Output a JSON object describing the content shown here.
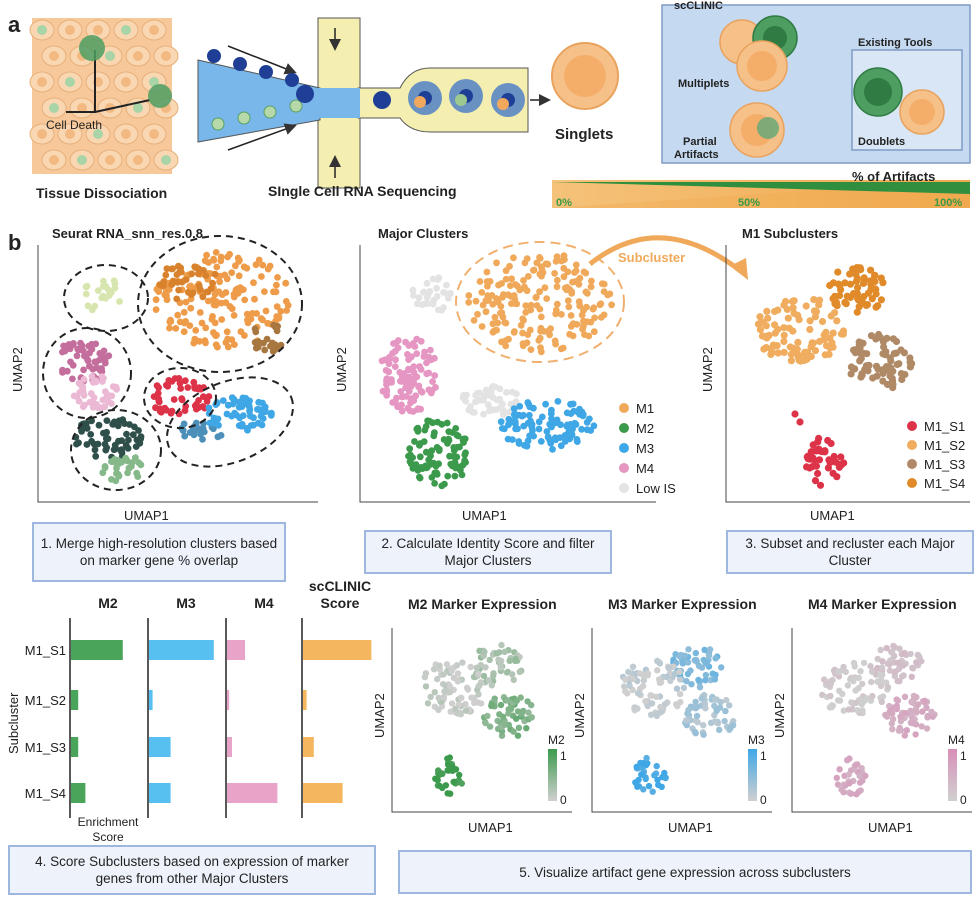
{
  "panel_a": {
    "label": "a",
    "tissue_title": "Tissue Dissociation",
    "cell_death": "Cell Death",
    "sequencing_title": "SIngle Cell RNA Sequencing",
    "singlets": "Singlets",
    "scclinic_label": "scCLINIC",
    "multiplets": "Multiplets",
    "partial_artifacts_1": "Partial",
    "partial_artifacts_2": "Artifacts",
    "existing_tools": "Existing Tools",
    "doublets": "Doublets",
    "artifacts_bar_title": "% of Artifacts",
    "artifacts_ticks": [
      "0%",
      "50%",
      "100%"
    ]
  },
  "panel_b": {
    "label": "b",
    "seurat_title": "Seurat RNA_snn_res.0.8",
    "major_title": "Major Clusters",
    "subcluster_arrow": "Subcluster",
    "m1sub_title": "M1 Subclusters",
    "umap1": "UMAP1",
    "umap2": "UMAP2",
    "major_legend": [
      "M1",
      "M2",
      "M3",
      "M4",
      "Low IS"
    ],
    "sub_legend": [
      "M1_S1",
      "M1_S2",
      "M1_S3",
      "M1_S4"
    ],
    "colors": {
      "M1": "#f0a95a",
      "M2": "#3c9a4c",
      "M3": "#3fa7e6",
      "M4": "#e596c2",
      "LowIS": "#e3e3e3",
      "S1": "#dd3348",
      "S2": "#f0ad5f",
      "S3": "#b08a67",
      "S4": "#e08a2a"
    }
  },
  "captions": {
    "c1": "1.  Merge high-resolution clusters based on marker gene % overlap",
    "c2": "2. Calculate Identity Score and filter Major Clusters",
    "c3": "3. Subset and recluster each Major Cluster",
    "c4": "4. Score Subclusters based on expression of marker genes from other Major Clusters",
    "c5": "5. Visualize artifact gene expression across subclusters"
  },
  "chart_data": [
    {
      "type": "bar",
      "orientation": "horizontal",
      "ylabel": "Subcluster",
      "xlabel": "Enrichment Score",
      "categories": [
        "M1_S1",
        "M1_S2",
        "M1_S3",
        "M1_S4"
      ],
      "series": [
        {
          "name": "M2",
          "color": "#4aa55a",
          "values": [
            0.72,
            0.1,
            0.1,
            0.2
          ]
        },
        {
          "name": "M3",
          "color": "#58c0f0",
          "values": [
            0.9,
            0.05,
            0.3,
            0.3
          ]
        },
        {
          "name": "M4",
          "color": "#e7a4c8",
          "values": [
            0.25,
            0.03,
            0.07,
            0.7
          ]
        },
        {
          "name": "scCLINIC Score",
          "color": "#f5b660",
          "values": [
            0.95,
            0.05,
            0.15,
            0.55
          ]
        }
      ],
      "series_title_lines": [
        [
          "M2"
        ],
        [
          "M3"
        ],
        [
          "M4"
        ],
        [
          "scCLINIC",
          "Score"
        ]
      ]
    }
  ],
  "expression_panels": [
    {
      "title": "M2 Marker Expression",
      "legend_title": "M2",
      "max_label": "1",
      "min_label": "0",
      "color": "#3c9a4c"
    },
    {
      "title": "M3 Marker Expression",
      "legend_title": "M3",
      "max_label": "1",
      "min_label": "0",
      "color": "#3fa7e6"
    },
    {
      "title": "M4 Marker Expression",
      "legend_title": "M4",
      "max_label": "1",
      "min_label": "0",
      "color": "#d88fb8"
    }
  ]
}
